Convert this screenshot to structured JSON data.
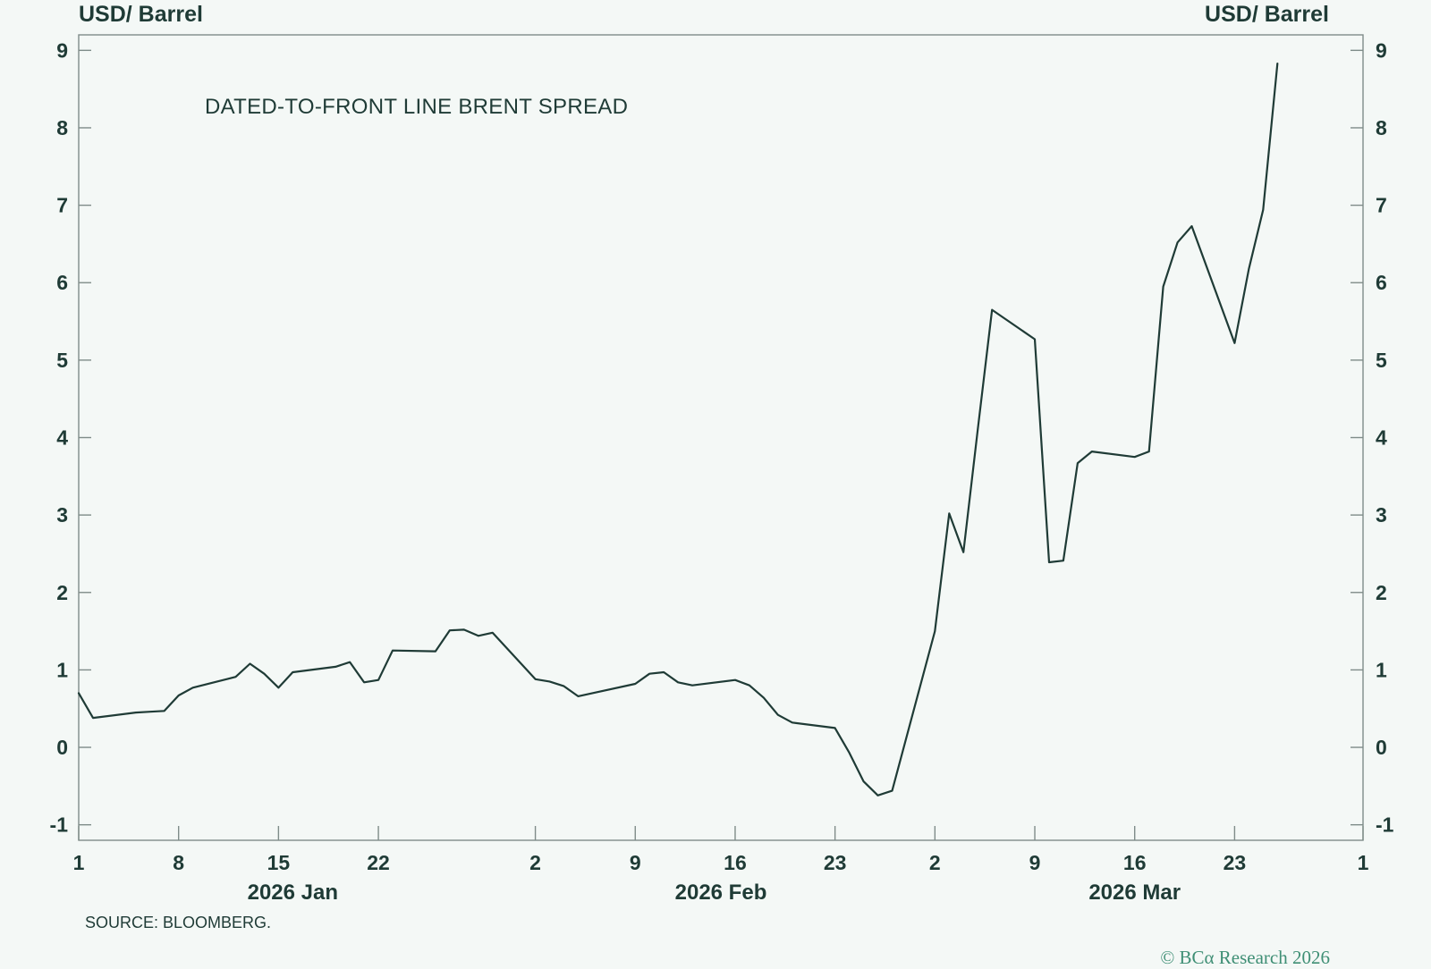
{
  "chart_data": {
    "type": "line",
    "title": "DATED-TO-FRONT LINE BRENT SPREAD",
    "ylabel_left": "USD/ Barrel",
    "ylabel_right": "USD/ Barrel",
    "xlabel": "",
    "ylim": [
      -1.2,
      9.2
    ],
    "yticks": [
      -1,
      0,
      1,
      2,
      3,
      4,
      5,
      6,
      7,
      8,
      9
    ],
    "xlim": [
      "2026-01-01",
      "2026-04-01"
    ],
    "xticks": [
      {
        "date": "2026-01-01",
        "label": "1"
      },
      {
        "date": "2026-01-08",
        "label": "8"
      },
      {
        "date": "2026-01-15",
        "label": "15"
      },
      {
        "date": "2026-01-22",
        "label": "22"
      },
      {
        "date": "2026-02-02",
        "label": "2"
      },
      {
        "date": "2026-02-09",
        "label": "9"
      },
      {
        "date": "2026-02-16",
        "label": "16"
      },
      {
        "date": "2026-02-23",
        "label": "23"
      },
      {
        "date": "2026-03-02",
        "label": "2"
      },
      {
        "date": "2026-03-09",
        "label": "9"
      },
      {
        "date": "2026-03-16",
        "label": "16"
      },
      {
        "date": "2026-03-23",
        "label": "23"
      },
      {
        "date": "2026-04-01",
        "label": "1"
      }
    ],
    "month_labels": [
      {
        "date": "2026-01-16",
        "label": "2026 Jan"
      },
      {
        "date": "2026-02-15",
        "label": "2026 Feb"
      },
      {
        "date": "2026-03-16",
        "label": "2026 Mar"
      }
    ],
    "grid": false,
    "line_color": "#1f3b36",
    "series": [
      {
        "points": [
          [
            "2026-01-01",
            0.7
          ],
          [
            "2026-01-02",
            0.38
          ],
          [
            "2026-01-05",
            0.45
          ],
          [
            "2026-01-06",
            0.46
          ],
          [
            "2026-01-07",
            0.47
          ],
          [
            "2026-01-08",
            0.67
          ],
          [
            "2026-01-09",
            0.77
          ],
          [
            "2026-01-12",
            0.91
          ],
          [
            "2026-01-13",
            1.08
          ],
          [
            "2026-01-14",
            0.95
          ],
          [
            "2026-01-15",
            0.77
          ],
          [
            "2026-01-16",
            0.97
          ],
          [
            "2026-01-19",
            1.04
          ],
          [
            "2026-01-20",
            1.1
          ],
          [
            "2026-01-21",
            0.84
          ],
          [
            "2026-01-22",
            0.87
          ],
          [
            "2026-01-23",
            1.25
          ],
          [
            "2026-01-26",
            1.24
          ],
          [
            "2026-01-27",
            1.51
          ],
          [
            "2026-01-28",
            1.52
          ],
          [
            "2026-01-29",
            1.44
          ],
          [
            "2026-01-30",
            1.48
          ],
          [
            "2026-02-02",
            0.88
          ],
          [
            "2026-02-03",
            0.85
          ],
          [
            "2026-02-04",
            0.79
          ],
          [
            "2026-02-05",
            0.66
          ],
          [
            "2026-02-06",
            0.7
          ],
          [
            "2026-02-09",
            0.82
          ],
          [
            "2026-02-10",
            0.95
          ],
          [
            "2026-02-11",
            0.97
          ],
          [
            "2026-02-12",
            0.84
          ],
          [
            "2026-02-13",
            0.8
          ],
          [
            "2026-02-16",
            0.87
          ],
          [
            "2026-02-17",
            0.8
          ],
          [
            "2026-02-18",
            0.64
          ],
          [
            "2026-02-19",
            0.42
          ],
          [
            "2026-02-20",
            0.32
          ],
          [
            "2026-02-23",
            0.25
          ],
          [
            "2026-02-24",
            -0.07
          ],
          [
            "2026-02-25",
            -0.44
          ],
          [
            "2026-02-26",
            -0.62
          ],
          [
            "2026-02-27",
            -0.56
          ],
          [
            "2026-03-02",
            1.5
          ],
          [
            "2026-03-03",
            3.02
          ],
          [
            "2026-03-04",
            2.52
          ],
          [
            "2026-03-05",
            4.1
          ],
          [
            "2026-03-06",
            5.65
          ],
          [
            "2026-03-09",
            5.27
          ],
          [
            "2026-03-10",
            2.39
          ],
          [
            "2026-03-11",
            2.41
          ],
          [
            "2026-03-12",
            3.67
          ],
          [
            "2026-03-13",
            3.82
          ],
          [
            "2026-03-16",
            3.75
          ],
          [
            "2026-03-17",
            3.82
          ],
          [
            "2026-03-18",
            5.95
          ],
          [
            "2026-03-19",
            6.52
          ],
          [
            "2026-03-20",
            6.73
          ],
          [
            "2026-03-23",
            5.22
          ],
          [
            "2026-03-24",
            6.18
          ],
          [
            "2026-03-25",
            6.94
          ],
          [
            "2026-03-26",
            8.83
          ]
        ]
      }
    ],
    "source": "SOURCE: BLOOMBERG.",
    "copyright": "© BCα Research 2026"
  }
}
